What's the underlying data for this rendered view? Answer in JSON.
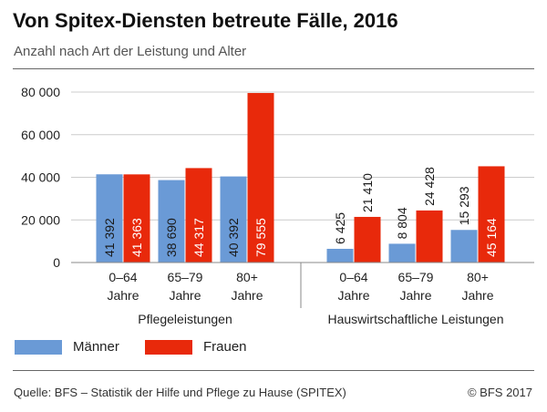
{
  "title": "Von Spitex-Diensten betreute Fälle, 2016",
  "subtitle": "Anzahl nach Art der Leistung und Alter",
  "source": "Quelle: BFS – Statistik der Hilfe und Pflege zu Hause (SPITEX)",
  "copyright": "© BFS 2017",
  "colors": {
    "maenner": "#6a9ad6",
    "frauen": "#e8290b",
    "grid": "#cccccc",
    "axis": "#888888"
  },
  "chart_data": {
    "type": "bar",
    "title": "Von Spitex-Diensten betreute Fälle, 2016",
    "subtitle": "Anzahl nach Art der Leistung und Alter",
    "groups": [
      {
        "label": "Pflegeleistungen",
        "categories": [
          [
            "0–64",
            "Jahre"
          ],
          [
            "65–79",
            "Jahre"
          ],
          [
            "80+",
            "Jahre"
          ]
        ]
      },
      {
        "label": "Hauswirtschaftliche Leistungen",
        "categories": [
          [
            "0–64",
            "Jahre"
          ],
          [
            "65–79",
            "Jahre"
          ],
          [
            "80+",
            "Jahre"
          ]
        ]
      }
    ],
    "series": [
      {
        "name": "Männer",
        "values": [
          41392,
          38690,
          40392,
          6425,
          8804,
          15293
        ],
        "labels": [
          "41 392",
          "38 690",
          "40 392",
          "6 425",
          "8 804",
          "15 293"
        ]
      },
      {
        "name": "Frauen",
        "values": [
          41363,
          44317,
          79555,
          21410,
          24428,
          45164
        ],
        "labels": [
          "41 363",
          "44 317",
          "79 555",
          "21 410",
          "24 428",
          "45 164"
        ]
      }
    ],
    "ylim": [
      0,
      80000
    ],
    "yticks": [
      0,
      20000,
      40000,
      60000,
      80000
    ],
    "ytick_labels": [
      "0",
      "20 000",
      "40 000",
      "60 000",
      "80 000"
    ],
    "grid": true,
    "legend_position": "bottom-left"
  }
}
